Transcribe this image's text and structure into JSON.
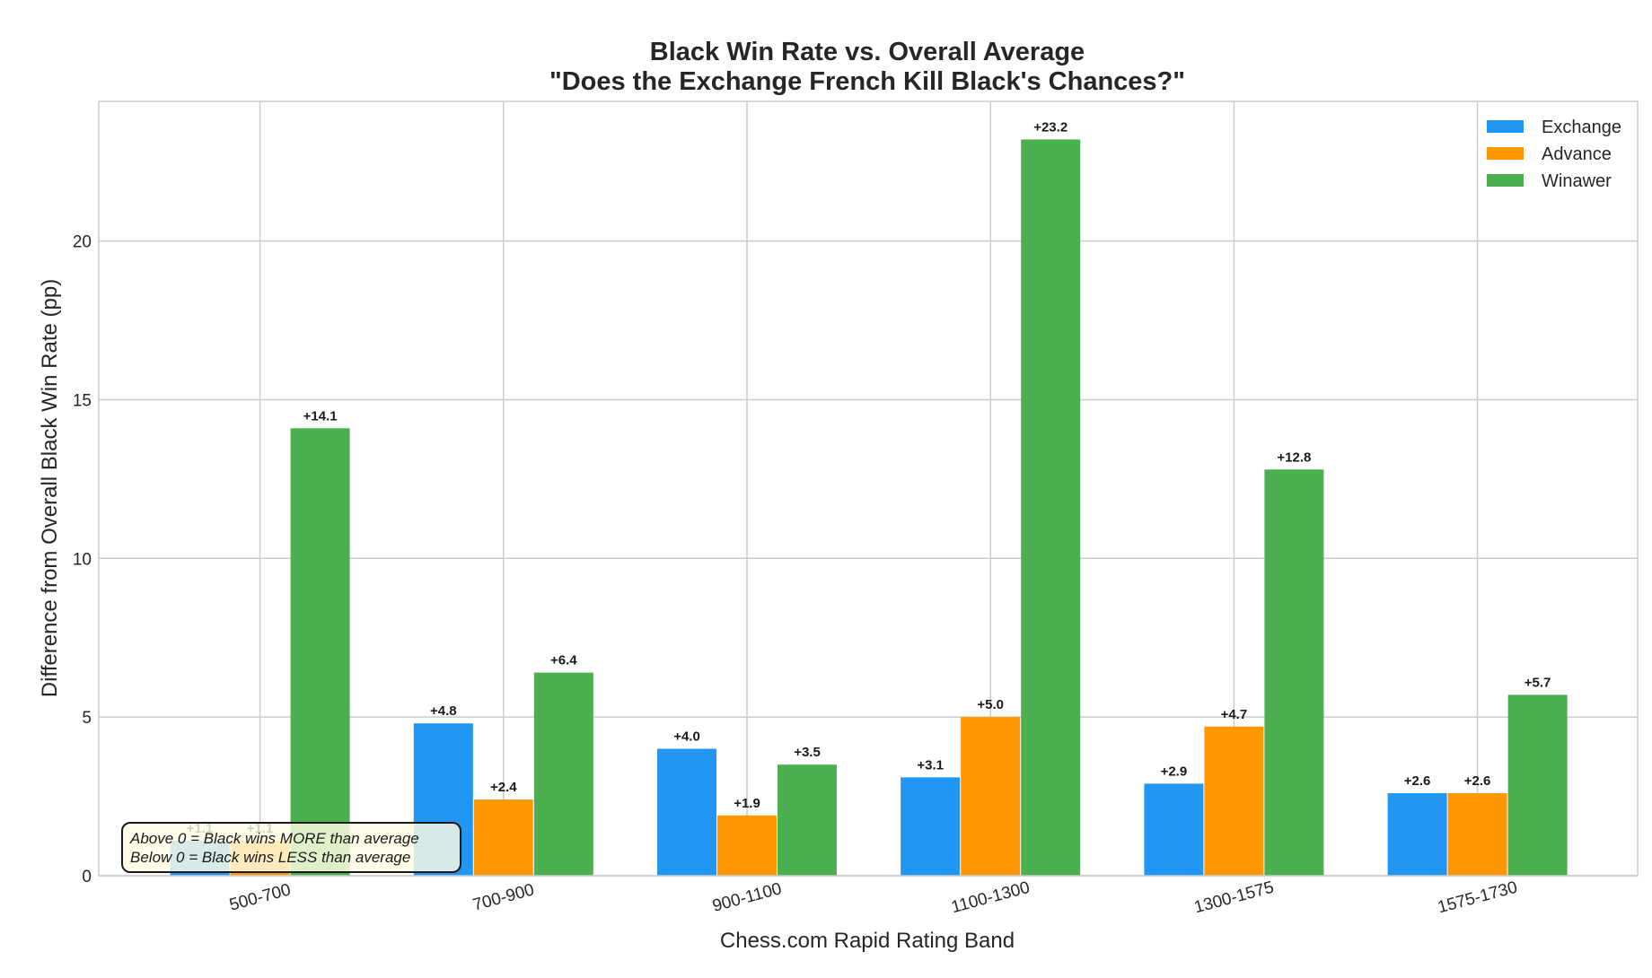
{
  "chart_data": {
    "type": "bar",
    "title": "Black Win Rate vs. Overall Average",
    "subtitle": "\"Does the Exchange French Kill Black's Chances?\"",
    "xlabel": "Chess.com Rapid Rating Band",
    "ylabel": "Difference from Overall Black Win Rate (pp)",
    "categories": [
      "500-700",
      "700-900",
      "900-1100",
      "1100-1300",
      "1300-1575",
      "1575-1730"
    ],
    "series": [
      {
        "name": "Exchange",
        "color": "#2196F3",
        "values": [
          1.1,
          4.8,
          4.0,
          3.1,
          2.9,
          2.6
        ],
        "labels": [
          "+1.1",
          "+4.8",
          "+4.0",
          "+3.1",
          "+2.9",
          "+2.6"
        ]
      },
      {
        "name": "Advance",
        "color": "#FF9800",
        "values": [
          1.1,
          2.4,
          1.9,
          5.0,
          4.7,
          2.6
        ],
        "labels": [
          "+1.1",
          "+2.4",
          "+1.9",
          "+5.0",
          "+4.7",
          "+2.6"
        ]
      },
      {
        "name": "Winawer",
        "color": "#4CAF50",
        "values": [
          14.1,
          6.4,
          3.5,
          23.2,
          12.8,
          5.7
        ],
        "labels": [
          "+14.1",
          "+6.4",
          "+3.5",
          "+23.2",
          "+12.8",
          "+5.7"
        ]
      }
    ],
    "ylim": [
      0,
      24.4
    ],
    "yticks": [
      0,
      5,
      10,
      15,
      20
    ],
    "ytick_labels": [
      "0",
      "5",
      "10",
      "15",
      "20"
    ],
    "grid": true,
    "legend_position": "top-right",
    "annotation": [
      "Above 0 = Black wins MORE than average",
      "Below 0 = Black wins LESS than average"
    ]
  }
}
